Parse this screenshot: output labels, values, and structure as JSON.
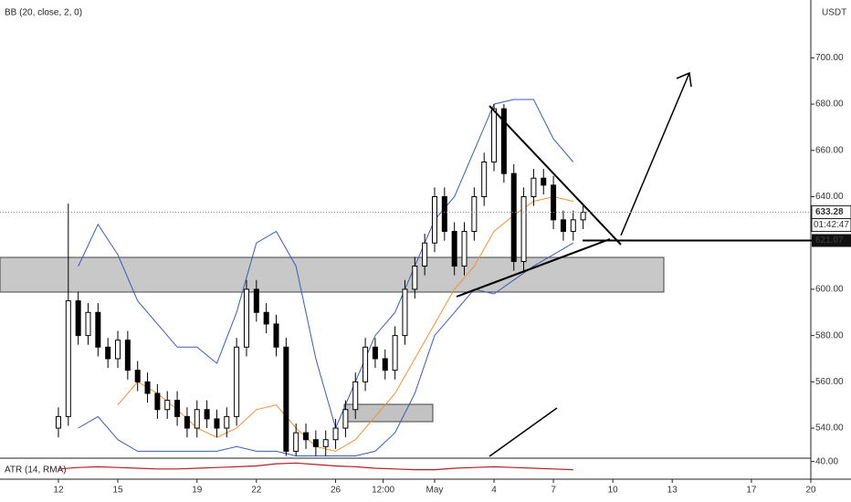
{
  "chart_data": {
    "type": "candlestick",
    "indicator_label": "BB (20, close, 2, 0)",
    "currency": "USDT",
    "x": [
      0,
      0.5,
      1,
      1.5,
      2,
      2.5,
      3,
      3.5,
      4,
      4.5,
      5,
      5.5,
      6,
      6.5,
      7,
      7.5,
      8,
      8.5,
      9,
      9.5,
      10,
      10.5,
      11,
      11.5,
      12,
      12.5,
      13,
      13.5,
      14,
      14.5,
      15,
      15.5,
      16,
      16.5,
      17,
      17.5,
      18,
      18.5,
      19,
      19.5,
      20,
      20.5,
      21,
      21.5,
      22,
      22.5,
      23,
      23.5,
      24,
      24.5,
      25,
      25.5,
      26,
      26.5
    ],
    "open": [
      540,
      545,
      595,
      580,
      590,
      575,
      570,
      578,
      565,
      560,
      555,
      548,
      552,
      545,
      540,
      548,
      544,
      540,
      545,
      575,
      600,
      590,
      585,
      575,
      530,
      538,
      535,
      532,
      535,
      540,
      548,
      560,
      575,
      570,
      565,
      580,
      600,
      610,
      620,
      640,
      625,
      610,
      625,
      640,
      655,
      678,
      650,
      612,
      640,
      648,
      645,
      630,
      625,
      630
    ],
    "high": [
      549,
      637,
      599,
      594,
      594,
      579,
      582,
      582,
      569,
      564,
      559,
      556,
      556,
      549,
      552,
      552,
      548,
      549,
      579,
      604,
      604,
      594,
      589,
      579,
      542,
      542,
      539,
      539,
      544,
      552,
      564,
      579,
      579,
      574,
      584,
      604,
      614,
      624,
      644,
      644,
      629,
      629,
      644,
      659,
      680,
      680,
      654,
      644,
      652,
      652,
      649,
      634,
      634,
      636
    ],
    "low": [
      536,
      541,
      576,
      576,
      571,
      566,
      566,
      561,
      556,
      551,
      544,
      544,
      541,
      536,
      536,
      540,
      536,
      536,
      541,
      571,
      586,
      581,
      571,
      528,
      528,
      531,
      528,
      528,
      531,
      536,
      544,
      556,
      566,
      561,
      561,
      576,
      596,
      606,
      616,
      621,
      606,
      606,
      621,
      636,
      651,
      646,
      608,
      608,
      636,
      641,
      626,
      621,
      621,
      626
    ],
    "close": [
      545,
      595,
      580,
      590,
      575,
      570,
      578,
      565,
      560,
      555,
      548,
      552,
      545,
      540,
      548,
      544,
      540,
      545,
      575,
      600,
      590,
      585,
      575,
      530,
      538,
      535,
      532,
      535,
      540,
      548,
      560,
      575,
      570,
      565,
      580,
      600,
      610,
      620,
      640,
      625,
      610,
      625,
      640,
      655,
      678,
      650,
      612,
      640,
      648,
      645,
      630,
      625,
      630,
      633.28
    ],
    "overlays": [
      {
        "color": "#3b5cb8",
        "x": [
          1,
          2,
          3,
          4,
          5,
          6,
          7,
          8,
          9,
          10,
          11,
          12,
          13,
          14,
          15,
          16,
          17,
          18,
          19,
          20,
          21,
          22,
          23,
          24,
          25,
          26
        ],
        "values": [
          610,
          628,
          615,
          595,
          585,
          575,
          575,
          568,
          590,
          620,
          625,
          610,
          570,
          540,
          560,
          580,
          590,
          610,
          630,
          640,
          660,
          680,
          682,
          682,
          665,
          655
        ]
      },
      {
        "color": "#3b5cb8",
        "x": [
          1,
          2,
          3,
          4,
          5,
          6,
          7,
          8,
          9,
          10,
          11,
          12,
          13,
          14,
          15,
          16,
          17,
          18,
          19,
          20,
          21,
          22,
          23,
          24,
          25,
          26
        ],
        "values": [
          540,
          545,
          535,
          530,
          530,
          530,
          530,
          530,
          532,
          530,
          530,
          528,
          528,
          528,
          528,
          530,
          538,
          555,
          580,
          590,
          600,
          598,
          604,
          610,
          615,
          620
        ]
      },
      {
        "color": "#f2912f",
        "x": [
          3,
          4,
          5,
          6,
          7,
          8,
          9,
          10,
          11,
          12,
          13,
          14,
          15,
          16,
          17,
          18,
          19,
          20,
          21,
          22,
          23,
          24,
          25,
          26
        ],
        "values": [
          550,
          560,
          555,
          548,
          540,
          536,
          540,
          548,
          550,
          540,
          532,
          530,
          535,
          545,
          555,
          570,
          585,
          600,
          610,
          625,
          632,
          638,
          640,
          638
        ]
      }
    ],
    "last_price": {
      "value": 633.28,
      "label": "633.28"
    },
    "countdown": "01:42:47",
    "level": {
      "value": 621.07,
      "label": "621.07"
    },
    "xlim": [
      -2.95,
      38
    ],
    "ylim": [
      527,
      725
    ],
    "xticks": [
      {
        "value": 0,
        "label": "12"
      },
      {
        "value": 3,
        "label": "15"
      },
      {
        "value": 7,
        "label": "19"
      },
      {
        "value": 10,
        "label": "22"
      },
      {
        "value": 14,
        "label": "26"
      },
      {
        "value": 16.4,
        "label": "12:00"
      },
      {
        "value": 19,
        "label": "May"
      },
      {
        "value": 22,
        "label": "4"
      },
      {
        "value": 25,
        "label": "7"
      },
      {
        "value": 28,
        "label": "10"
      },
      {
        "value": 31,
        "label": "13"
      },
      {
        "value": 35,
        "label": "17"
      },
      {
        "value": 38,
        "label": "20"
      }
    ],
    "yticks": [
      {
        "value": 540,
        "label": "540.00"
      },
      {
        "value": 560,
        "label": "560.00"
      },
      {
        "value": 580,
        "label": "580.00"
      },
      {
        "value": 600,
        "label": "600.00"
      },
      {
        "value": 640,
        "label": "640.00"
      },
      {
        "value": 660,
        "label": "660.00"
      },
      {
        "value": 680,
        "label": "680.00"
      },
      {
        "value": 700,
        "label": "700.00"
      }
    ],
    "atr": {
      "label": "ATR (14, RMA)",
      "color": "#b22222",
      "x": [
        0,
        1,
        2,
        3,
        4,
        5,
        6,
        7,
        8,
        9,
        10,
        11,
        12,
        13,
        14,
        15,
        16,
        17,
        18,
        19,
        20,
        21,
        22,
        23,
        24,
        25,
        26
      ],
      "values": [
        30,
        32,
        33,
        32,
        31,
        30,
        30,
        31,
        32,
        33,
        34,
        37,
        38,
        36,
        34,
        33,
        31,
        30,
        29,
        29,
        31,
        32,
        33,
        32,
        31,
        30,
        29
      ],
      "ylim": [
        20,
        42
      ],
      "yticks": [
        {
          "value": 40,
          "label": "40.00"
        }
      ]
    }
  }
}
